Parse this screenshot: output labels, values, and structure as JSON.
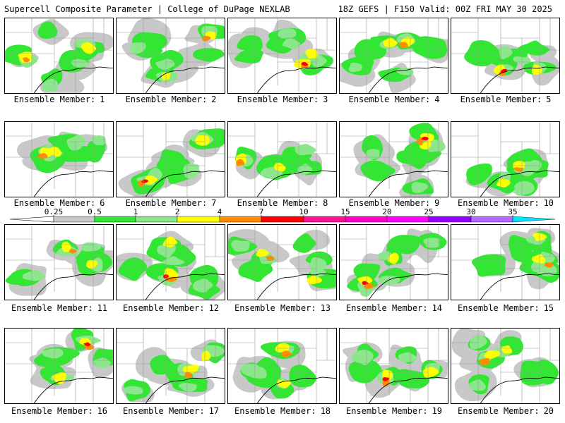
{
  "header": {
    "title": "Supercell Composite Parameter | College of DuPage NEXLAB",
    "run_info": "18Z GEFS | F150 Valid: 00Z FRI MAY 30 2025"
  },
  "panel_label_prefix": "Ensemble Member:",
  "members": [
    1,
    2,
    3,
    4,
    5,
    6,
    7,
    8,
    9,
    10,
    11,
    12,
    13,
    14,
    15,
    16,
    17,
    18,
    19,
    20
  ],
  "legend": {
    "ticks": [
      "0.25",
      "0.5",
      "1",
      "2",
      "4",
      "7",
      "10",
      "15",
      "20",
      "25",
      "30",
      "35"
    ],
    "colors": [
      "#c8c8c8",
      "#33e633",
      "#8ce68c",
      "#ffff00",
      "#ff8c00",
      "#ff0000",
      "#ff1493",
      "#ff00c8",
      "#ff00ff",
      "#9400ff",
      "#b469ff",
      "#00e6ff"
    ]
  }
}
